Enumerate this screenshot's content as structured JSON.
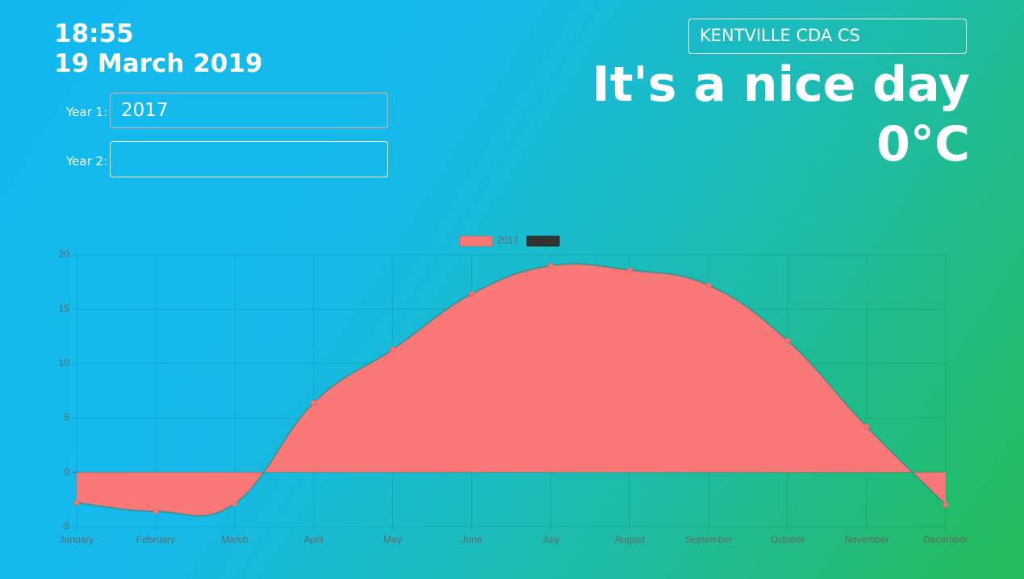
{
  "header": {
    "time": "18:55",
    "date": "19 March 2019",
    "station": "KENTVILLE CDA CS",
    "message": "It's a nice day",
    "temperature": "0°C"
  },
  "form": {
    "year1_label": "Year 1:",
    "year1_value": "2017",
    "year2_label": "Year 2:"
  },
  "chart_data": {
    "type": "area",
    "categories": [
      "January",
      "February",
      "March",
      "April",
      "May",
      "June",
      "July",
      "August",
      "September",
      "October",
      "November",
      "December"
    ],
    "series": [
      {
        "name": "2017",
        "color": "#f87878",
        "values": [
          -2.8,
          -3.6,
          -2.9,
          6.4,
          11.3,
          16.4,
          19.0,
          18.6,
          17.2,
          12.1,
          4.2,
          -3.0
        ]
      }
    ],
    "ylim": [
      -5,
      20
    ],
    "yticks": [
      -5,
      0,
      5,
      10,
      15,
      20
    ],
    "grid": true,
    "legend": "top"
  }
}
